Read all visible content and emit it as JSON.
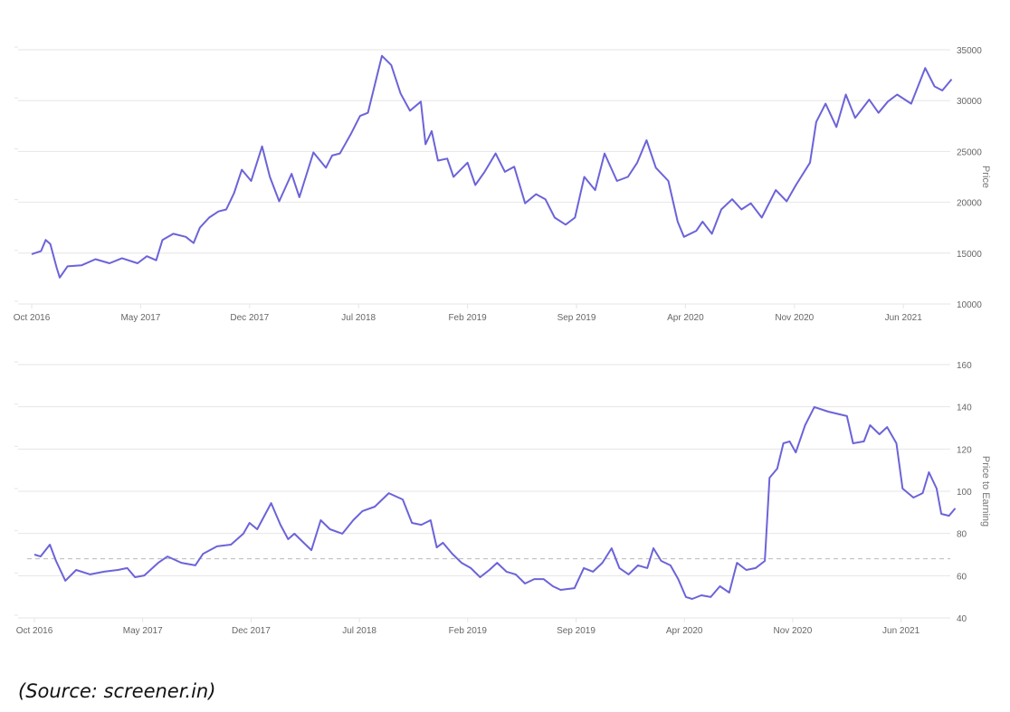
{
  "caption": "(Source: screener.in)",
  "chart_data": [
    {
      "type": "line",
      "title": "",
      "ylabel": "Price",
      "ylim": [
        10000,
        35000
      ],
      "yticks": [
        10000,
        15000,
        20000,
        25000,
        30000,
        35000
      ],
      "x_unit": "months since Oct 2016",
      "xticks": [
        {
          "m": 0,
          "label": "Oct 2016"
        },
        {
          "m": 7,
          "label": "May 2017"
        },
        {
          "m": 14,
          "label": "Dec 2017"
        },
        {
          "m": 21,
          "label": "Jul 2018"
        },
        {
          "m": 28,
          "label": "Feb 2019"
        },
        {
          "m": 35,
          "label": "Sep 2019"
        },
        {
          "m": 42,
          "label": "Apr 2020"
        },
        {
          "m": 49,
          "label": "Nov 2020"
        },
        {
          "m": 56,
          "label": "Jun 2021"
        }
      ],
      "color": "#6c63d9",
      "series": [
        {
          "name": "Price",
          "points": [
            [
              0,
              14900
            ],
            [
              0.6,
              15200
            ],
            [
              0.9,
              16300
            ],
            [
              1.2,
              15900
            ],
            [
              1.6,
              13600
            ],
            [
              1.8,
              12600
            ],
            [
              2.3,
              13700
            ],
            [
              3.2,
              13800
            ],
            [
              4.1,
              14400
            ],
            [
              5.0,
              14000
            ],
            [
              5.8,
              14500
            ],
            [
              6.8,
              14000
            ],
            [
              7.4,
              14700
            ],
            [
              8.0,
              14300
            ],
            [
              8.4,
              16300
            ],
            [
              9.1,
              16900
            ],
            [
              9.9,
              16600
            ],
            [
              10.4,
              16000
            ],
            [
              10.8,
              17500
            ],
            [
              11.4,
              18500
            ],
            [
              12.0,
              19100
            ],
            [
              12.5,
              19300
            ],
            [
              13.0,
              20900
            ],
            [
              13.5,
              23200
            ],
            [
              14.1,
              22100
            ],
            [
              14.8,
              25500
            ],
            [
              15.3,
              22500
            ],
            [
              15.9,
              20100
            ],
            [
              16.7,
              22800
            ],
            [
              17.2,
              20500
            ],
            [
              18.1,
              24900
            ],
            [
              18.9,
              23400
            ],
            [
              19.3,
              24600
            ],
            [
              19.8,
              24800
            ],
            [
              20.5,
              26700
            ],
            [
              21.1,
              28500
            ],
            [
              21.6,
              28800
            ],
            [
              22.5,
              34400
            ],
            [
              23.1,
              33500
            ],
            [
              23.7,
              30700
            ],
            [
              24.3,
              29000
            ],
            [
              25.0,
              29900
            ],
            [
              25.3,
              25700
            ],
            [
              25.7,
              27000
            ],
            [
              26.1,
              24100
            ],
            [
              26.7,
              24300
            ],
            [
              27.1,
              22500
            ],
            [
              28.0,
              23900
            ],
            [
              28.5,
              21700
            ],
            [
              29.1,
              23000
            ],
            [
              29.8,
              24800
            ],
            [
              30.4,
              23000
            ],
            [
              31.0,
              23500
            ],
            [
              31.7,
              19900
            ],
            [
              32.4,
              20800
            ],
            [
              33.0,
              20300
            ],
            [
              33.6,
              18500
            ],
            [
              34.3,
              17800
            ],
            [
              34.9,
              18500
            ],
            [
              35.5,
              22500
            ],
            [
              36.2,
              21200
            ],
            [
              36.8,
              24800
            ],
            [
              37.6,
              22100
            ],
            [
              38.3,
              22500
            ],
            [
              38.9,
              23900
            ],
            [
              39.5,
              26100
            ],
            [
              40.1,
              23400
            ],
            [
              40.9,
              22100
            ],
            [
              41.5,
              18100
            ],
            [
              41.9,
              16600
            ],
            [
              42.7,
              17200
            ],
            [
              43.1,
              18100
            ],
            [
              43.7,
              16900
            ],
            [
              44.3,
              19300
            ],
            [
              45.0,
              20300
            ],
            [
              45.6,
              19300
            ],
            [
              46.2,
              19900
            ],
            [
              46.9,
              18500
            ],
            [
              47.8,
              21200
            ],
            [
              48.5,
              20100
            ],
            [
              49.1,
              21700
            ],
            [
              50.0,
              23900
            ],
            [
              50.4,
              27900
            ],
            [
              51.0,
              29700
            ],
            [
              51.7,
              27400
            ],
            [
              52.3,
              30600
            ],
            [
              52.9,
              28300
            ],
            [
              53.8,
              30100
            ],
            [
              54.4,
              28800
            ],
            [
              55.0,
              29900
            ],
            [
              55.6,
              30600
            ],
            [
              56.5,
              29700
            ],
            [
              57.4,
              33200
            ],
            [
              58.0,
              31400
            ],
            [
              58.5,
              31000
            ],
            [
              59.1,
              32100
            ]
          ]
        }
      ]
    },
    {
      "type": "line",
      "title": "",
      "ylabel": "Price to Earning",
      "ylim": [
        40,
        160
      ],
      "yticks": [
        40,
        60,
        80,
        100,
        120,
        140,
        160
      ],
      "x_unit": "months since Oct 2016",
      "xticks": [
        {
          "m": 0,
          "label": "Oct 2016"
        },
        {
          "m": 7,
          "label": "May 2017"
        },
        {
          "m": 14,
          "label": "Dec 2017"
        },
        {
          "m": 21,
          "label": "Jul 2018"
        },
        {
          "m": 28,
          "label": "Feb 2019"
        },
        {
          "m": 35,
          "label": "Sep 2019"
        },
        {
          "m": 42,
          "label": "Apr 2020"
        },
        {
          "m": 49,
          "label": "Nov 2020"
        },
        {
          "m": 56,
          "label": "Jun 2021"
        }
      ],
      "reference_line": 68,
      "color": "#6c63d9",
      "series": [
        {
          "name": "Price to Earning",
          "points": [
            [
              0,
              70
            ],
            [
              0.4,
              69.1
            ],
            [
              1.0,
              74.7
            ],
            [
              1.4,
              67
            ],
            [
              2.0,
              57.6
            ],
            [
              2.7,
              62.7
            ],
            [
              3.6,
              60.6
            ],
            [
              4.5,
              61.9
            ],
            [
              5.4,
              62.7
            ],
            [
              6.0,
              63.6
            ],
            [
              6.5,
              59.3
            ],
            [
              7.1,
              60.1
            ],
            [
              8.0,
              66.1
            ],
            [
              8.6,
              69.1
            ],
            [
              9.5,
              66.1
            ],
            [
              10.4,
              64.9
            ],
            [
              10.9,
              70.4
            ],
            [
              11.8,
              73.9
            ],
            [
              12.7,
              74.7
            ],
            [
              13.5,
              79.9
            ],
            [
              13.9,
              85
            ],
            [
              14.4,
              82
            ],
            [
              15.3,
              94.4
            ],
            [
              15.9,
              84.1
            ],
            [
              16.4,
              77.3
            ],
            [
              16.8,
              79.9
            ],
            [
              17.4,
              75.6
            ],
            [
              17.9,
              72.1
            ],
            [
              18.5,
              86.3
            ],
            [
              19.1,
              82
            ],
            [
              19.9,
              79.9
            ],
            [
              20.6,
              86.3
            ],
            [
              21.2,
              90.6
            ],
            [
              22.0,
              92.7
            ],
            [
              22.9,
              99.1
            ],
            [
              23.8,
              96.1
            ],
            [
              24.4,
              85
            ],
            [
              25.0,
              84.1
            ],
            [
              25.6,
              86.3
            ],
            [
              26.0,
              73.4
            ],
            [
              26.4,
              75.6
            ],
            [
              27.0,
              70.4
            ],
            [
              27.6,
              66.1
            ],
            [
              28.2,
              63.6
            ],
            [
              28.8,
              59.3
            ],
            [
              29.4,
              62.7
            ],
            [
              29.9,
              66.1
            ],
            [
              30.5,
              61.9
            ],
            [
              31.1,
              60.6
            ],
            [
              31.7,
              56.3
            ],
            [
              32.3,
              58.4
            ],
            [
              32.9,
              58.4
            ],
            [
              33.5,
              55
            ],
            [
              34.0,
              53.3
            ],
            [
              34.9,
              54.1
            ],
            [
              35.5,
              63.6
            ],
            [
              36.1,
              61.9
            ],
            [
              36.7,
              66.1
            ],
            [
              37.3,
              73
            ],
            [
              37.8,
              63.6
            ],
            [
              38.4,
              60.6
            ],
            [
              39.0,
              64.9
            ],
            [
              39.6,
              63.6
            ],
            [
              40.0,
              73
            ],
            [
              40.5,
              67
            ],
            [
              41.1,
              64.9
            ],
            [
              41.6,
              58.4
            ],
            [
              42.1,
              49.9
            ],
            [
              42.5,
              49
            ],
            [
              43.1,
              50.7
            ],
            [
              43.7,
              49.9
            ],
            [
              44.3,
              55
            ],
            [
              44.9,
              52
            ],
            [
              45.4,
              66.1
            ],
            [
              46.0,
              62.7
            ],
            [
              46.6,
              63.6
            ],
            [
              47.2,
              67
            ],
            [
              47.5,
              106.4
            ],
            [
              48.0,
              110.7
            ],
            [
              48.4,
              122.7
            ],
            [
              48.8,
              123.6
            ],
            [
              49.2,
              118.4
            ],
            [
              49.8,
              131.3
            ],
            [
              50.4,
              139.9
            ],
            [
              51.3,
              137.7
            ],
            [
              52.5,
              135.6
            ],
            [
              52.9,
              122.7
            ],
            [
              53.6,
              123.6
            ],
            [
              54.0,
              131.3
            ],
            [
              54.6,
              127
            ],
            [
              55.1,
              130.4
            ],
            [
              55.7,
              122.7
            ],
            [
              56.1,
              101.3
            ],
            [
              56.8,
              97
            ],
            [
              57.4,
              99.1
            ],
            [
              57.8,
              109
            ],
            [
              58.3,
              101.3
            ],
            [
              58.6,
              89.3
            ],
            [
              59.1,
              88.4
            ],
            [
              59.5,
              91.9
            ]
          ]
        }
      ]
    }
  ]
}
